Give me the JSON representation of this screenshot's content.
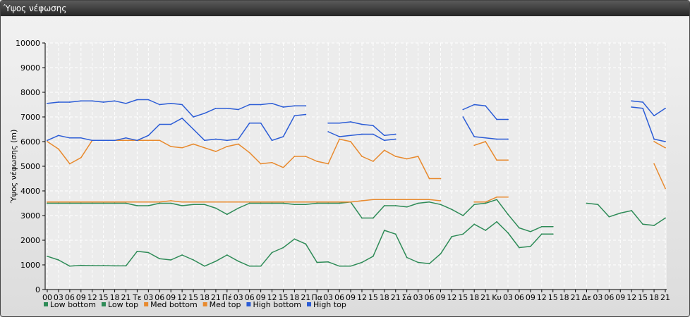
{
  "window": {
    "title": "Ύψος νέφωσης"
  },
  "chart_data": {
    "type": "line",
    "title": "",
    "ylabel": "Ύψος νέφωσης (m)",
    "xlabel": "",
    "ylim": [
      0,
      10000
    ],
    "yticks": [
      0,
      1000,
      2000,
      3000,
      4000,
      5000,
      6000,
      7000,
      8000,
      9000,
      10000
    ],
    "grid": true,
    "legend": "bottom-left",
    "x": [
      "00",
      "03",
      "06",
      "09",
      "12",
      "15",
      "18",
      "21",
      "Τε",
      "03",
      "06",
      "09",
      "12",
      "15",
      "18",
      "21",
      "Πέ",
      "03",
      "06",
      "09",
      "12",
      "15",
      "18",
      "21",
      "Πα",
      "03",
      "06",
      "09",
      "12",
      "15",
      "18",
      "21",
      "Σά",
      "03",
      "06",
      "09",
      "12",
      "15",
      "18",
      "21",
      "Κυ",
      "03",
      "06",
      "09",
      "12",
      "15",
      "18",
      "21",
      "Δε",
      "03",
      "06",
      "09",
      "12",
      "15",
      "18",
      "21"
    ],
    "series": [
      {
        "name": "Low bottom",
        "color": "#2e8b57",
        "values": [
          1350,
          1200,
          950,
          980,
          970,
          970,
          960,
          960,
          1550,
          1500,
          1250,
          1200,
          1400,
          1200,
          950,
          1150,
          1400,
          1150,
          950,
          950,
          1500,
          1700,
          2050,
          1850,
          1100,
          1120,
          950,
          950,
          1100,
          1350,
          2400,
          2250,
          1300,
          1100,
          1050,
          1450,
          2150,
          2250,
          2650,
          2400,
          2750,
          2300,
          1700,
          1750,
          2250,
          2250,
          null,
          null,
          null,
          null,
          null,
          null,
          null,
          null,
          null,
          null
        ]
      },
      {
        "name": "Low top",
        "color": "#2e8b57",
        "values": [
          3500,
          3500,
          3500,
          3500,
          3500,
          3500,
          3500,
          3500,
          3400,
          3400,
          3500,
          3500,
          3400,
          3450,
          3450,
          3300,
          3050,
          3300,
          3500,
          3500,
          3500,
          3500,
          3450,
          3450,
          3500,
          3500,
          3500,
          3550,
          2900,
          2900,
          3400,
          3400,
          3350,
          3500,
          3550,
          3450,
          3250,
          3000,
          3450,
          3500,
          3650,
          3050,
          2500,
          2350,
          2550,
          2550,
          null,
          null,
          3500,
          3450,
          2950,
          3100,
          3200,
          2650,
          2600,
          2900
        ]
      },
      {
        "name": "Med bottom",
        "color": "#e88a2e",
        "values": [
          3550,
          3550,
          3550,
          3550,
          3550,
          3550,
          3550,
          3550,
          3550,
          3550,
          3550,
          3600,
          3550,
          3550,
          3550,
          3550,
          3550,
          3550,
          3550,
          3550,
          3550,
          3550,
          3550,
          3550,
          3550,
          3550,
          3550,
          3550,
          3600,
          3650,
          3650,
          3650,
          3650,
          3650,
          3650,
          3600,
          null,
          null,
          3550,
          3550,
          3750,
          3750,
          null,
          null,
          null,
          null,
          null,
          null,
          null,
          null,
          null,
          null,
          null,
          null,
          5100,
          4100
        ]
      },
      {
        "name": "Med top",
        "color": "#e88a2e",
        "values": [
          6000,
          5700,
          5100,
          5350,
          6050,
          6050,
          6050,
          6050,
          6050,
          6050,
          6050,
          5800,
          5750,
          5900,
          5750,
          5600,
          5800,
          5900,
          5550,
          5100,
          5150,
          4950,
          5400,
          5400,
          5200,
          5100,
          6100,
          6000,
          5400,
          5200,
          5650,
          5400,
          5300,
          5400,
          4500,
          4500,
          null,
          null,
          5850,
          6000,
          5250,
          5250,
          null,
          null,
          null,
          null,
          null,
          null,
          null,
          null,
          null,
          null,
          null,
          null,
          6000,
          5750
        ]
      },
      {
        "name": "High bottom",
        "color": "#2b5cd6",
        "values": [
          6050,
          6250,
          6150,
          6150,
          6050,
          6050,
          6050,
          6150,
          6050,
          6250,
          6700,
          6700,
          6950,
          6500,
          6050,
          6100,
          6050,
          6100,
          6750,
          6750,
          6050,
          6200,
          7050,
          7100,
          null,
          6400,
          6200,
          6250,
          6300,
          6300,
          6050,
          6100,
          null,
          null,
          null,
          null,
          null,
          7000,
          6200,
          6150,
          6100,
          6100,
          null,
          null,
          null,
          null,
          null,
          null,
          null,
          null,
          null,
          null,
          7400,
          7350,
          6100,
          6000
        ]
      },
      {
        "name": "High top",
        "color": "#2b5cd6",
        "values": [
          7550,
          7600,
          7600,
          7650,
          7650,
          7600,
          7650,
          7550,
          7700,
          7700,
          7500,
          7550,
          7500,
          7000,
          7150,
          7350,
          7350,
          7300,
          7500,
          7500,
          7550,
          7400,
          7450,
          7450,
          null,
          6750,
          6750,
          6800,
          6700,
          6650,
          6250,
          6300,
          null,
          null,
          null,
          null,
          null,
          7300,
          7500,
          7450,
          6900,
          6900,
          null,
          null,
          null,
          null,
          null,
          null,
          null,
          null,
          null,
          null,
          7650,
          7600,
          7050,
          7350
        ]
      }
    ]
  }
}
